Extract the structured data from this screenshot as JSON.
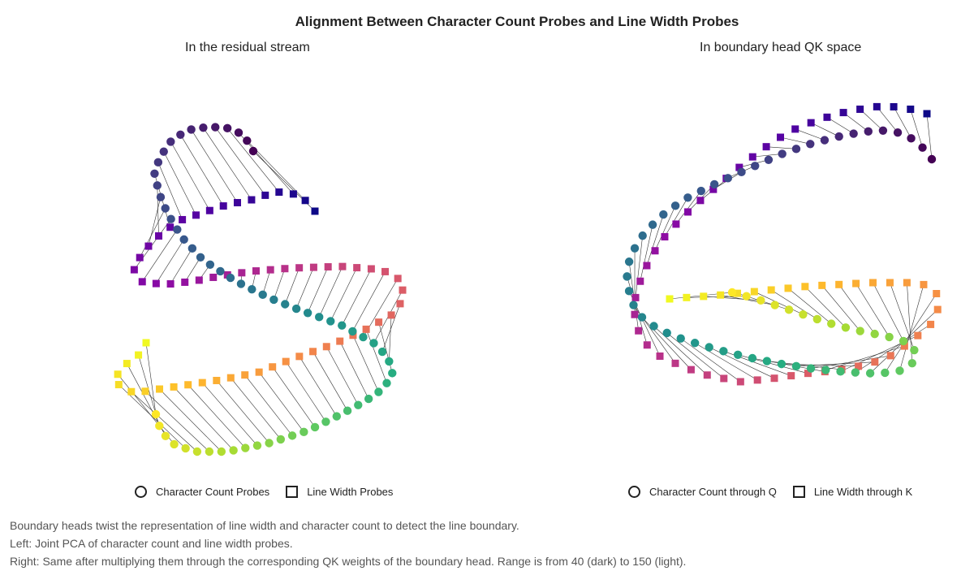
{
  "title": "Alignment Between Character Count Probes and Line Width Probes",
  "left_panel": {
    "title": "In the residual stream",
    "legend": {
      "circle_label": "Character Count Probes",
      "square_label": "Line Width Probes"
    }
  },
  "right_panel": {
    "title": "In boundary head QK space",
    "legend": {
      "circle_label": "Character Count through Q",
      "square_label": "Line Width through K"
    }
  },
  "caption": [
    "Boundary heads twist the representation of line width and character count to detect the line boundary.",
    "Left: Joint PCA of character count and line width probes.",
    "Right: Same after multiplying them through the corresponding QK weights of the boundary head. Range is from 40 (dark) to 150 (light)."
  ],
  "chart_data": [
    {
      "type": "scatter",
      "title": "In the residual stream",
      "value_range": [
        40,
        150
      ],
      "colormap": "viridis (circles), plasma (squares)",
      "axes_visible": false,
      "series": [
        {
          "name": "Character Count Probes",
          "marker": "circle"
        },
        {
          "name": "Line Width Probes",
          "marker": "square"
        }
      ],
      "connectors": "lines join character count and line width probe points of equal value"
    },
    {
      "type": "scatter",
      "title": "In boundary head QK space",
      "value_range": [
        40,
        150
      ],
      "colormap": "viridis (circles), plasma (squares)",
      "axes_visible": false,
      "series": [
        {
          "name": "Character Count through Q",
          "marker": "circle"
        },
        {
          "name": "Line Width through K",
          "marker": "square"
        }
      ],
      "connectors": "lines join character count and line width points of equal value"
    }
  ]
}
